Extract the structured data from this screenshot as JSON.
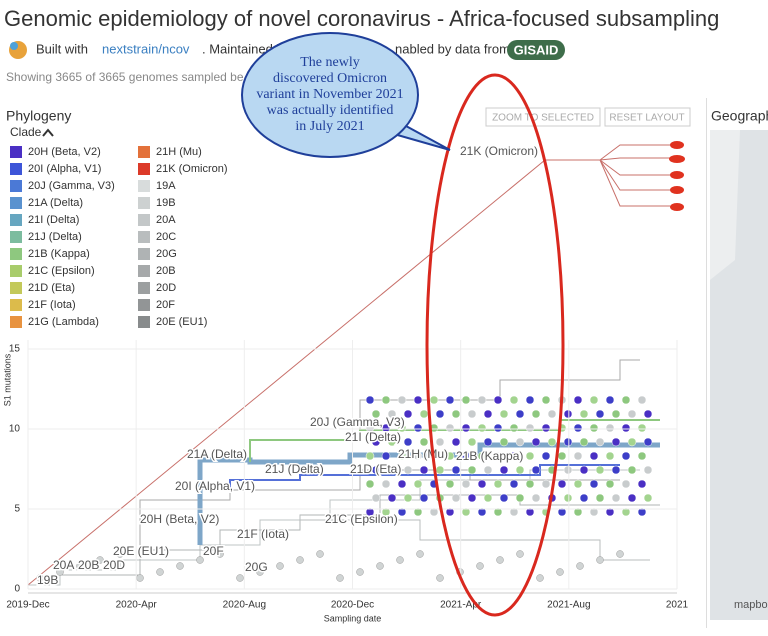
{
  "header": {
    "title": "Genomic epidemiology of novel coronavirus - Africa-focused subsampling",
    "built_with": "Built with",
    "link": "nextstrain/ncov",
    "maintained": ". Maintained by",
    "enabled": "nabled by data from",
    "gisaid": "GISAID",
    "showing": "Showing 3665 of 3665 genomes sampled be"
  },
  "panel": {
    "title": "Phylogeny",
    "zoom": "ZOOM TO SELECTED",
    "reset": "RESET LAYOUT",
    "geography": "Geography",
    "mapbox": "mapbox"
  },
  "legend": {
    "title": "Clade",
    "items": [
      {
        "name": "20H (Beta, V2)",
        "color": "#4a2fc4"
      },
      {
        "name": "20I (Alpha, V1)",
        "color": "#3d55d8"
      },
      {
        "name": "20J (Gamma, V3)",
        "color": "#4b79d6"
      },
      {
        "name": "21A (Delta)",
        "color": "#5a92cf"
      },
      {
        "name": "21I (Delta)",
        "color": "#66a6c0"
      },
      {
        "name": "21J (Delta)",
        "color": "#7cbc9f"
      },
      {
        "name": "21B (Kappa)",
        "color": "#8ec87f"
      },
      {
        "name": "21C (Epsilon)",
        "color": "#a8cc6b"
      },
      {
        "name": "21D (Eta)",
        "color": "#c3c95a"
      },
      {
        "name": "21F (Iota)",
        "color": "#dcbb4b"
      },
      {
        "name": "21G (Lambda)",
        "color": "#e89340"
      },
      {
        "name": "21H (Mu)",
        "color": "#e3713a"
      },
      {
        "name": "21K (Omicron)",
        "color": "#dc3a29"
      },
      {
        "name": "19A",
        "color": "#d8dcdc"
      },
      {
        "name": "19B",
        "color": "#cdd1d1"
      },
      {
        "name": "20A",
        "color": "#c3c7c8"
      },
      {
        "name": "20C",
        "color": "#b9bdbe"
      },
      {
        "name": "20G",
        "color": "#afb3b4"
      },
      {
        "name": "20B",
        "color": "#a6a9aa"
      },
      {
        "name": "20D",
        "color": "#9c9fa0"
      },
      {
        "name": "20F",
        "color": "#929596"
      },
      {
        "name": "20E (EU1)",
        "color": "#888b8c"
      }
    ]
  },
  "annotation": {
    "lines": [
      "The newly",
      "discovered Omicron",
      "variant in November 2021",
      "was actually identified",
      "in July 2021"
    ]
  },
  "chart_data": {
    "type": "tree",
    "xlabel": "Sampling date",
    "ylabel": "S1 mutations",
    "xticks": [
      "2019-Dec",
      "2020-Apr",
      "2020-Aug",
      "2020-Dec",
      "2021-Apr",
      "2021-Aug",
      "2021"
    ],
    "ylim": [
      0,
      16
    ],
    "yticks": [
      0,
      5,
      10,
      15
    ],
    "clade_labels": [
      "21K (Omicron)",
      "20J (Gamma, V3)",
      "21I (Delta)",
      "21A (Delta)",
      "21H (Mu)",
      "21B (Kappa)",
      "21J (Delta)",
      "21D (Eta)",
      "20I (Alpha, V1)",
      "20H (Beta, V2)",
      "21C (Epsilon)",
      "21F (Iota)",
      "20E (EU1)",
      "20F",
      "20A",
      "20B",
      "20D",
      "20G",
      "19B"
    ]
  }
}
